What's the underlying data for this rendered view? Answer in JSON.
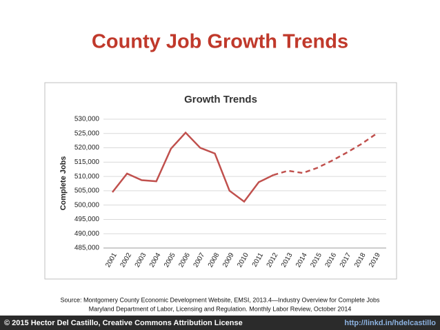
{
  "title": "County Job Growth Trends",
  "chart_data": {
    "type": "line",
    "title": "Growth Trends",
    "y_label": "Complete Jobs",
    "categories": [
      "2001",
      "2002",
      "2003",
      "2004",
      "2005",
      "2006",
      "2007",
      "2008",
      "2009",
      "2010",
      "2011",
      "2012",
      "2013",
      "2014",
      "2015",
      "2016",
      "2017",
      "2018",
      "2019"
    ],
    "series": [
      {
        "color": "#c0504d",
        "line_style": "solid",
        "values": [
          504500,
          511000,
          508700,
          508300,
          519700,
          525300,
          520000,
          518000,
          505000,
          501200,
          508000,
          510500,
          null,
          null,
          null,
          null,
          null,
          null,
          null
        ]
      },
      {
        "color": "#c0504d",
        "line_style": "dashed",
        "values": [
          null,
          null,
          null,
          null,
          null,
          null,
          null,
          null,
          null,
          null,
          null,
          510500,
          512000,
          511200,
          513000,
          515500,
          518300,
          521300,
          524800
        ]
      }
    ],
    "ylim": [
      485000,
      530000
    ],
    "yticks": [
      {
        "value": 485000,
        "label": "485,000"
      },
      {
        "value": 490000,
        "label": "490,000"
      },
      {
        "value": 495000,
        "label": "495,000"
      },
      {
        "value": 500000,
        "label": "500,000"
      },
      {
        "value": 505000,
        "label": "505,000"
      },
      {
        "value": 510000,
        "label": "510,000"
      },
      {
        "value": 515000,
        "label": "515,000"
      },
      {
        "value": 520000,
        "label": "520,000"
      },
      {
        "value": 525000,
        "label": "525,000"
      },
      {
        "value": 530000,
        "label": "530,000"
      }
    ],
    "grid": true
  },
  "source": [
    "Source: Montgomery County Economic Development Website, EMSI, 2013.4—Industry Overview for Complete Jobs",
    "Maryland Department of Labor, Licensing and Regulation. Monthly Labor Review, October 2014"
  ],
  "footer": {
    "left": "© 2015 Hector Del Castillo, Creative Commons Attribution License",
    "right": "http://linkd.in/hdelcastillo"
  }
}
